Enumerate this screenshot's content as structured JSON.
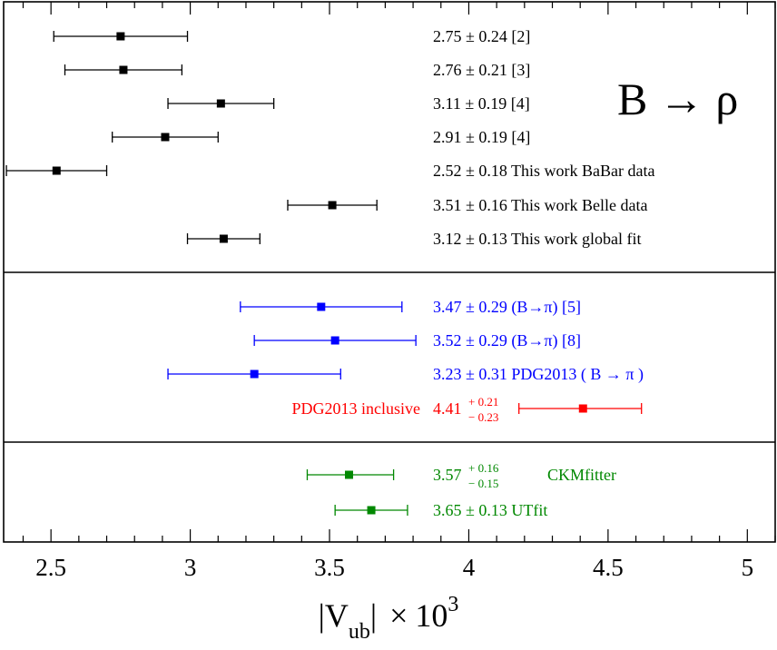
{
  "chart_data": {
    "type": "scatter",
    "subtype": "forest-plot",
    "title": "B → ρ",
    "xlabel": "|V_ub| × 10^3",
    "xlabel_parts": {
      "pre": "|V",
      "sub": "ub",
      "post": "|",
      "times": "×",
      "base": "10",
      "exp": "3"
    },
    "xlim": [
      2.33,
      5.1
    ],
    "xticks": [
      {
        "value": 2.5,
        "label": "2.5"
      },
      {
        "value": 3,
        "label": "3"
      },
      {
        "value": 3.5,
        "label": "3.5"
      },
      {
        "value": 4,
        "label": "4"
      },
      {
        "value": 4.5,
        "label": "4.5"
      },
      {
        "value": 5,
        "label": "5"
      }
    ],
    "colors": {
      "black": "#000000",
      "blue": "#0000ff",
      "red": "#ff0000",
      "green": "#008800"
    },
    "panels": [
      {
        "name": "b-to-rho",
        "color": "black",
        "entries": [
          {
            "value": 2.75,
            "lo": 2.51,
            "hi": 2.99,
            "value_text": "2.75 ± 0.24",
            "label": "[2]"
          },
          {
            "value": 2.76,
            "lo": 2.55,
            "hi": 2.97,
            "value_text": "2.76 ± 0.21",
            "label": "[3]"
          },
          {
            "value": 3.11,
            "lo": 2.92,
            "hi": 3.3,
            "value_text": "3.11 ± 0.19",
            "label": "[4]"
          },
          {
            "value": 2.91,
            "lo": 2.72,
            "hi": 3.1,
            "value_text": "2.91 ± 0.19",
            "label": "[4]"
          },
          {
            "value": 2.52,
            "lo": 2.34,
            "hi": 2.7,
            "value_text": "2.52 ± 0.18",
            "label": "This work BaBar data"
          },
          {
            "value": 3.51,
            "lo": 3.35,
            "hi": 3.67,
            "value_text": "3.51 ± 0.16",
            "label": "This work Belle data"
          },
          {
            "value": 3.12,
            "lo": 2.99,
            "hi": 3.25,
            "value_text": "3.12 ± 0.13",
            "label": "This work global fit"
          }
        ]
      },
      {
        "name": "b-to-pi",
        "entries": [
          {
            "color": "blue",
            "value": 3.47,
            "lo": 3.18,
            "hi": 3.76,
            "value_text": "3.47 ± 0.29",
            "label": "(B→π) [5]"
          },
          {
            "color": "blue",
            "value": 3.52,
            "lo": 3.23,
            "hi": 3.81,
            "value_text": "3.52 ± 0.29",
            "label": "(B→π) [8]"
          },
          {
            "color": "blue",
            "value": 3.23,
            "lo": 2.92,
            "hi": 3.54,
            "value_text": "3.23 ± 0.31",
            "label": "PDG2013  ( B → π )"
          },
          {
            "color": "red",
            "value": 4.41,
            "lo": 4.18,
            "hi": 4.62,
            "prefix": "PDG2013  inclusive",
            "value_base": "4.41",
            "err_plus": "+ 0.21",
            "err_minus": "− 0.23"
          }
        ]
      },
      {
        "name": "global-fits",
        "color": "green",
        "entries": [
          {
            "value": 3.57,
            "lo": 3.42,
            "hi": 3.73,
            "value_base": "3.57",
            "err_plus": "+ 0.16",
            "err_minus": "− 0.15",
            "label": "CKMfitter"
          },
          {
            "value": 3.65,
            "lo": 3.52,
            "hi": 3.78,
            "value_text": "3.65 ± 0.13",
            "label": "UTfit"
          }
        ]
      }
    ]
  }
}
